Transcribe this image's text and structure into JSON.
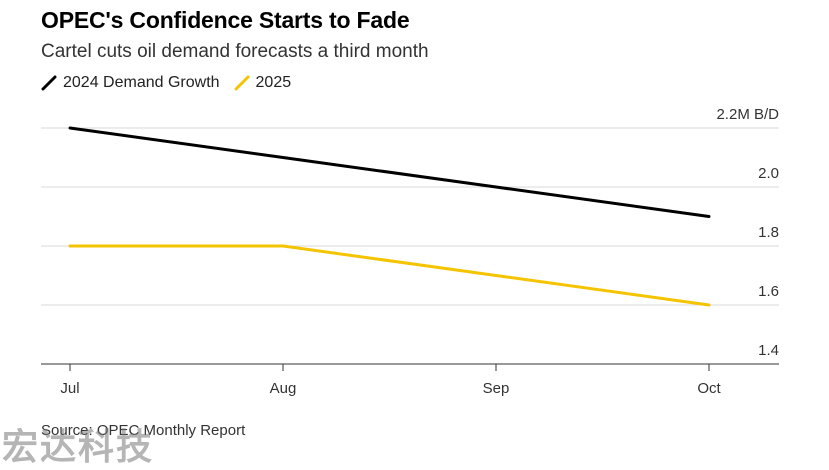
{
  "title": "OPEC's Confidence Starts to Fade",
  "subtitle": "Cartel cuts oil demand forecasts a third month",
  "source": "Source: OPEC Monthly Report",
  "watermark": "宏达科技",
  "colors": {
    "series_2024": "#000000",
    "series_2025": "#f5c400",
    "grid": "#d9d9d9"
  },
  "chart_data": {
    "type": "line",
    "title": "OPEC's Confidence Starts to Fade",
    "subtitle": "Cartel cuts oil demand forecasts a third month",
    "x": [
      "Jul",
      "Aug",
      "Sep",
      "Oct"
    ],
    "series": [
      {
        "name": "2024 Demand Growth",
        "values": [
          2.2,
          2.1,
          2.0,
          1.9
        ],
        "color": "#000000"
      },
      {
        "name": "2025",
        "values": [
          1.8,
          1.8,
          1.7,
          1.6
        ],
        "color": "#f5c400"
      }
    ],
    "ylim": [
      1.4,
      2.2
    ],
    "yticks": [
      1.4,
      1.6,
      1.8,
      2.0,
      2.2
    ],
    "ytick_labels": [
      "1.4",
      "1.6",
      "1.8",
      "2.0",
      "2.2M B/D"
    ],
    "grid": true,
    "legend_position": "top-left",
    "y_axis_side": "right"
  }
}
